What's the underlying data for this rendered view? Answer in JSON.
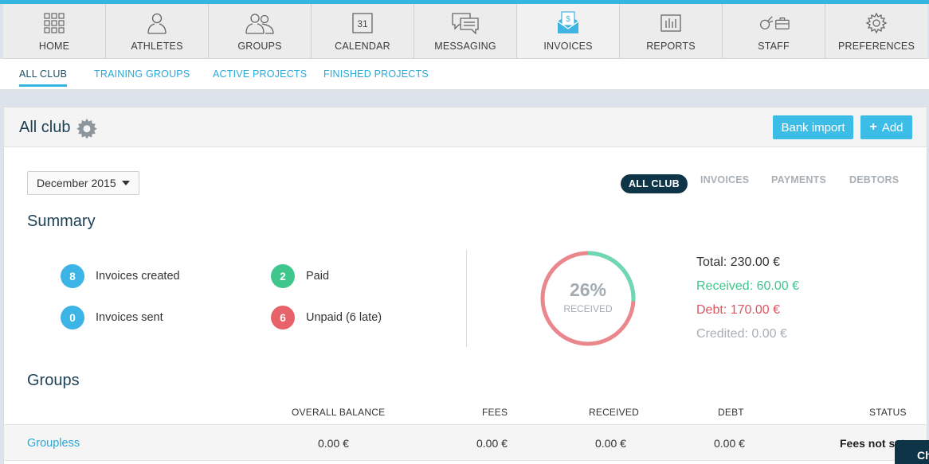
{
  "nav": {
    "items": [
      {
        "label": "HOME",
        "icon": "home-grid-icon"
      },
      {
        "label": "ATHLETES",
        "icon": "athlete-icon"
      },
      {
        "label": "GROUPS",
        "icon": "groups-icon"
      },
      {
        "label": "CALENDAR",
        "icon": "calendar-icon",
        "day": "31"
      },
      {
        "label": "MESSAGING",
        "icon": "messaging-icon"
      },
      {
        "label": "INVOICES",
        "icon": "invoice-icon",
        "active": true
      },
      {
        "label": "REPORTS",
        "icon": "reports-icon"
      },
      {
        "label": "STAFF",
        "icon": "staff-icon"
      },
      {
        "label": "PREFERENCES",
        "icon": "gear-icon"
      }
    ]
  },
  "subnav": {
    "tabs": [
      {
        "label": "ALL CLUB",
        "active": true
      },
      {
        "label": "TRAINING GROUPS"
      },
      {
        "label": "ACTIVE PROJECTS"
      },
      {
        "label": "FINISHED PROJECTS"
      }
    ]
  },
  "header": {
    "title": "All club",
    "bank_import": "Bank import",
    "add": "Add"
  },
  "month": "December 2015",
  "filters": [
    "ALL CLUB",
    "INVOICES",
    "PAYMENTS",
    "DEBTORS"
  ],
  "summary": {
    "title": "Summary",
    "stats": [
      {
        "count": "8",
        "label": "Invoices created",
        "color": "#3cb4e5"
      },
      {
        "count": "2",
        "label": "Paid",
        "color": "#3fc68d"
      },
      {
        "count": "0",
        "label": "Invoices sent",
        "color": "#3cb4e5"
      },
      {
        "count": "6",
        "label": "Unpaid (6 late)",
        "color": "#e8626a"
      }
    ],
    "donut": {
      "percent_text": "26%",
      "caption": "RECEIVED",
      "received_fraction": 0.26,
      "received_color": "#6dd8b1",
      "debt_color": "#e9878c"
    },
    "totals": {
      "total": "Total: 230.00 €",
      "received": "Received: 60.00 €",
      "debt": "Debt: 170.00 €",
      "credited": "Credited: 0.00 €"
    }
  },
  "groups": {
    "title": "Groups",
    "columns": [
      "OVERALL BALANCE",
      "FEES",
      "RECEIVED",
      "DEBT",
      "STATUS"
    ],
    "rows": [
      {
        "name": "Groupless",
        "overall_balance": "0.00 €",
        "fees": "0.00 €",
        "received": "0.00 €",
        "debt": "0.00 €",
        "status": "Fees not set"
      }
    ]
  },
  "chat_label": "Ch"
}
